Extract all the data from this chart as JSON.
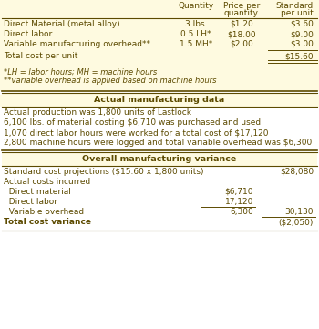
{
  "bg_color": "#FEFAE0",
  "text_color": "#5C4A00",
  "border_color": "#5C4A00",
  "fig_bg": "#FFFFFF",
  "rows": [
    [
      "Direct Material (metal alloy)",
      "3 lbs.",
      "$1.20",
      "$3.60"
    ],
    [
      "Direct labor",
      "0.5 LH*",
      "$18.00",
      "$9.00"
    ],
    [
      "Variable manufacturing overhead**",
      "1.5 MH*",
      "$2.00",
      "$3.00"
    ],
    [
      "Total cost per unit",
      "",
      "",
      "$15.60"
    ]
  ],
  "footnotes": [
    "*LH = labor hours; MH = machine hours",
    "**variable overhead is applied based on machine hours"
  ],
  "section1_title": "Actual manufacturing data",
  "section1_lines": [
    "Actual production was 1,800 units of Lastlock",
    "6,100 lbs. of material costing $6,710 was purchased and used",
    "1,070 direct labor hours were worked for a total cost of $17,120",
    "2,800 machine hours were logged and total variable overhead was $6,300"
  ],
  "section2_title": "Overall manufacturing variance",
  "section2_rows": [
    {
      "label": "Standard cost projections ($15.60 x 1,800 units)",
      "col1": "",
      "col2": "$28,080"
    },
    {
      "label": "Actual costs incurred",
      "col1": "",
      "col2": ""
    },
    {
      "label": "  Direct material",
      "col1": "$6,710",
      "col2": ""
    },
    {
      "label": "  Direct labor",
      "col1": "17,120",
      "col2": ""
    },
    {
      "label": "  Variable overhead",
      "col1": "6,300",
      "col2": "30,130"
    },
    {
      "label": "Total cost variance",
      "col1": "",
      "col2": "($2,050)"
    }
  ]
}
